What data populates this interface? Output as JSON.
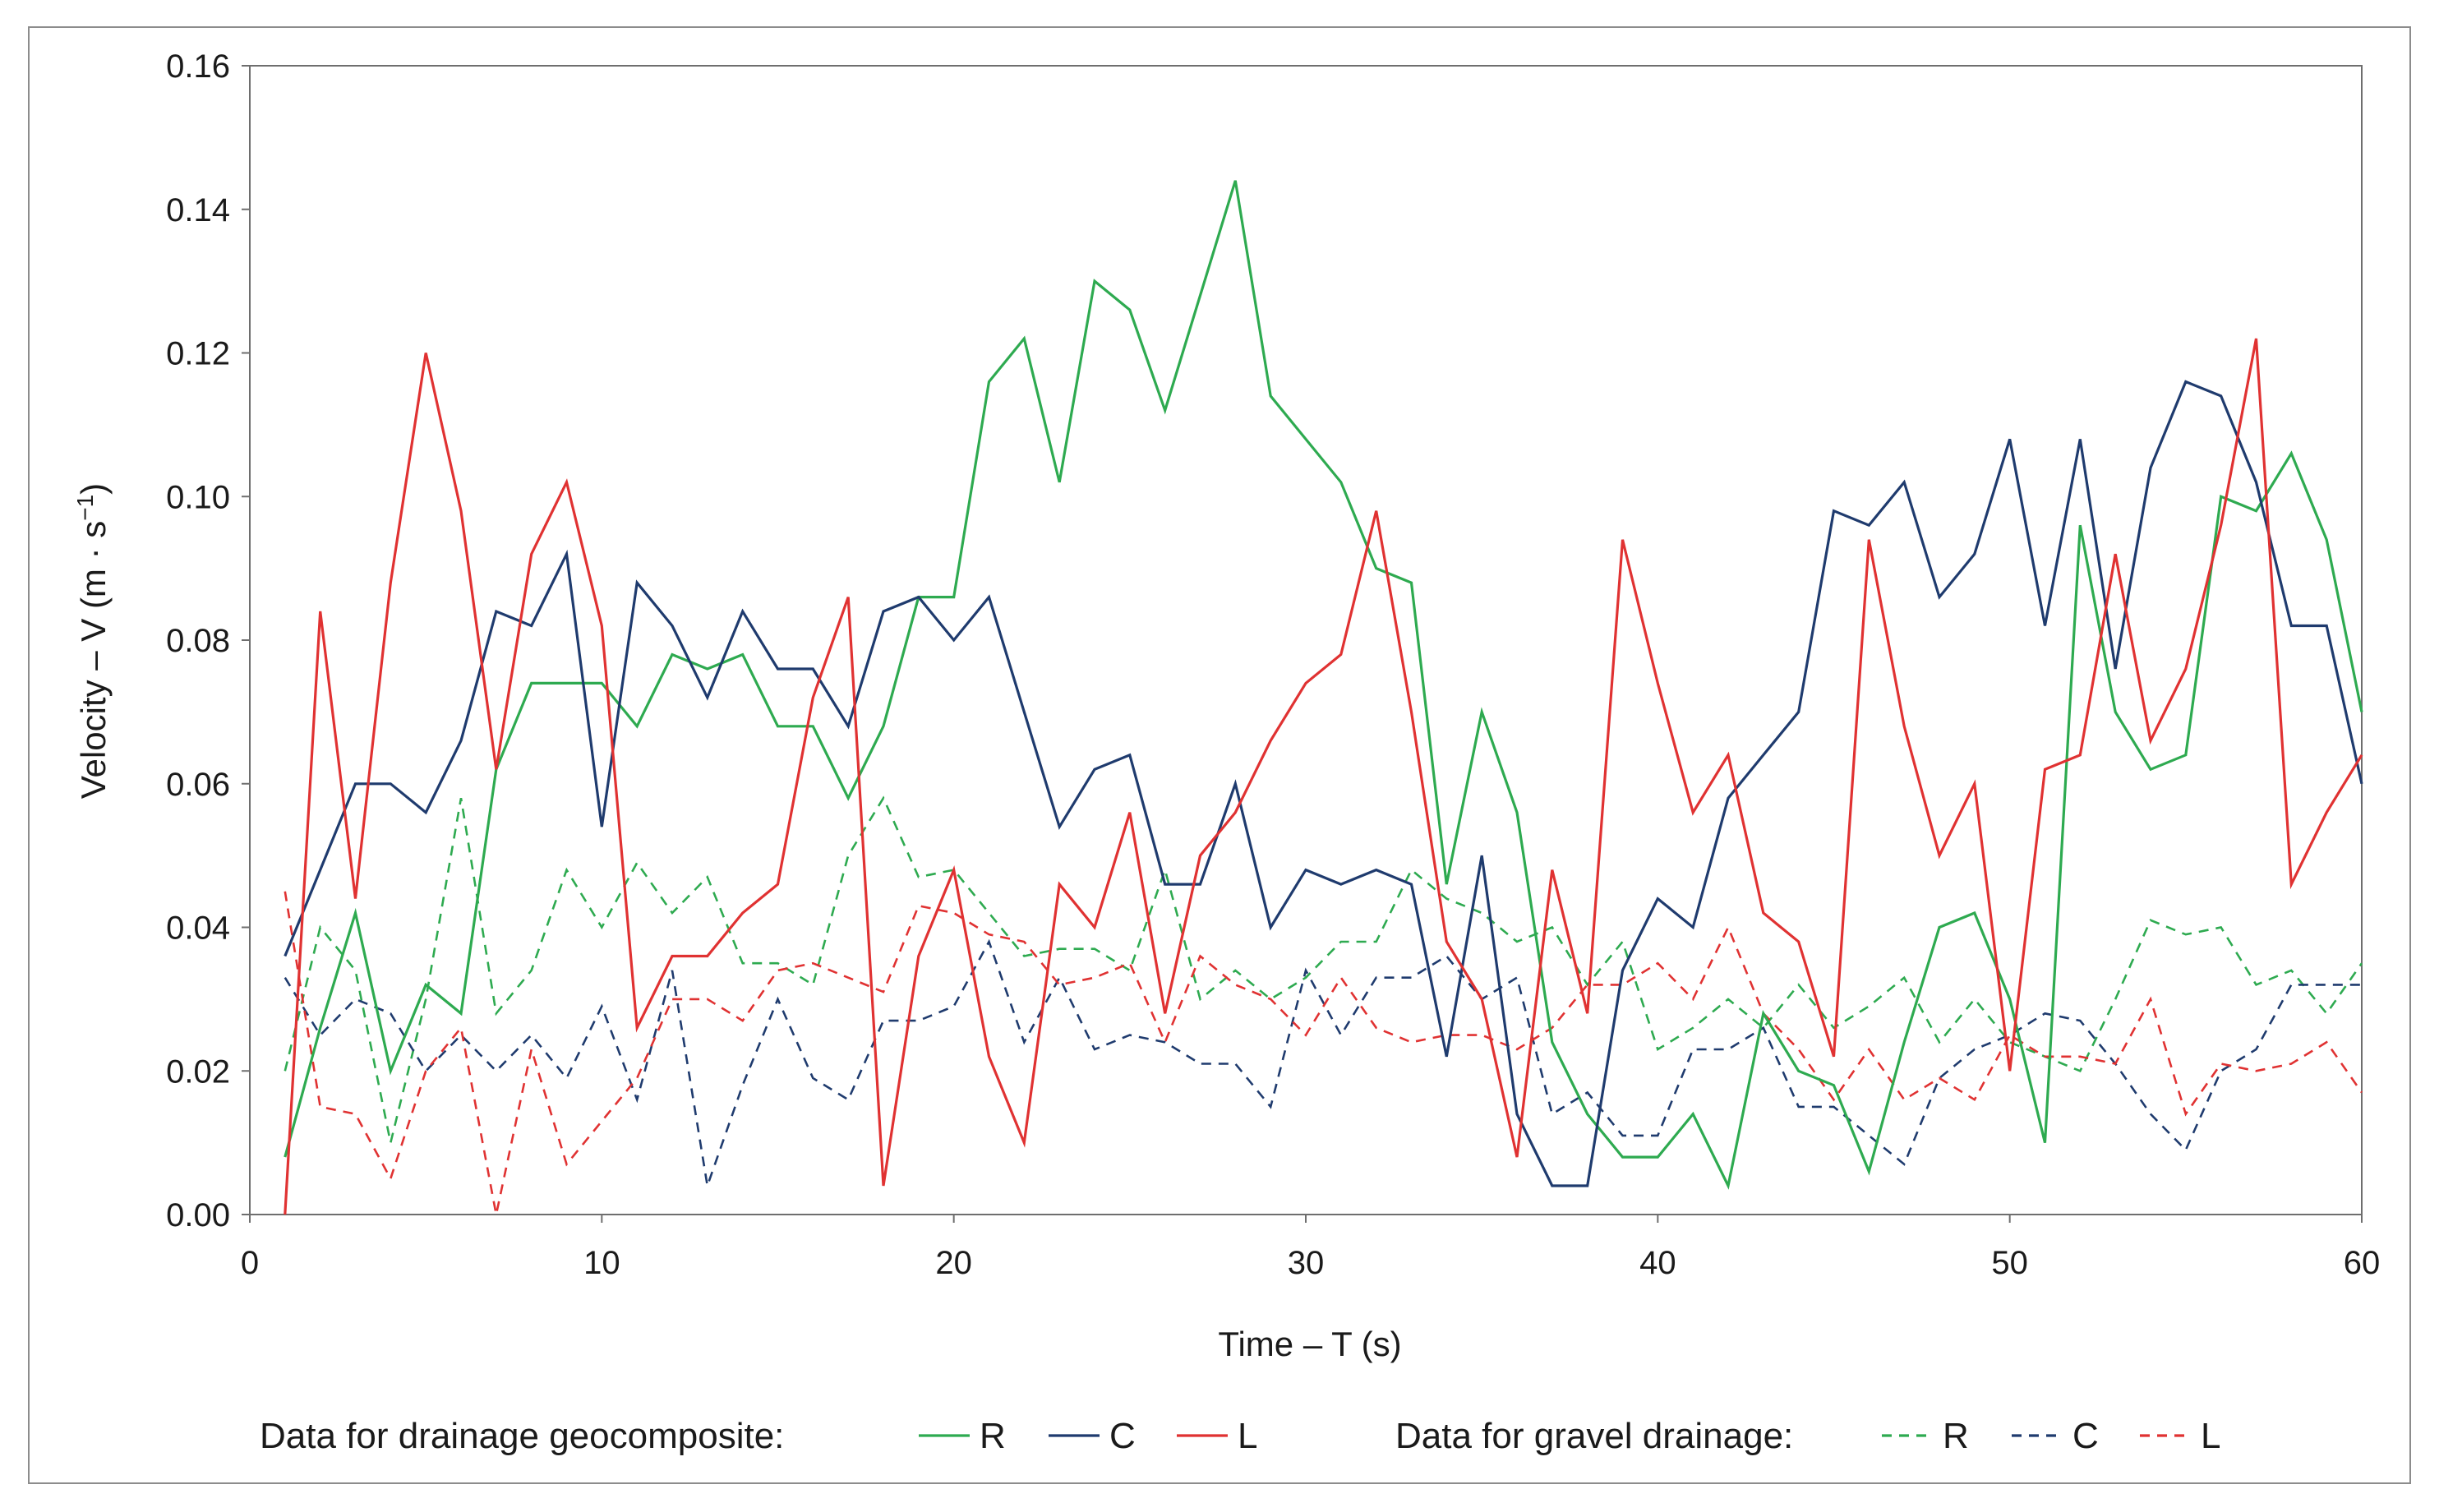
{
  "chart_data": {
    "type": "line",
    "title": "",
    "xlabel": "Time – T (s)",
    "ylabel": "Velocity – V (m · s",
    "ylabel_sup": "−1",
    "ylabel_close": ")",
    "xlim": [
      0,
      60
    ],
    "ylim": [
      0,
      0.16
    ],
    "xticks": [
      0,
      10,
      20,
      30,
      40,
      50,
      60
    ],
    "xtick_labels": [
      "0",
      "10",
      "20",
      "30",
      "40",
      "50",
      "60"
    ],
    "yticks": [
      0,
      0.02,
      0.04,
      0.06,
      0.08,
      0.1,
      0.12,
      0.14,
      0.16
    ],
    "ytick_labels": [
      "0.00",
      "0.02",
      "0.04",
      "0.06",
      "0.08",
      "0.10",
      "0.12",
      "0.14",
      "0.16"
    ],
    "grid": false,
    "legend": {
      "placement": "bottom",
      "group1_title": "Data for drainage geocomposite:",
      "group2_title": "Data for gravel drainage:"
    },
    "x": [
      1,
      2,
      3,
      4,
      5,
      6,
      7,
      8,
      9,
      10,
      11,
      12,
      13,
      14,
      15,
      16,
      17,
      18,
      19,
      20,
      21,
      22,
      23,
      24,
      25,
      26,
      27,
      28,
      29,
      30,
      31,
      32,
      33,
      34,
      35,
      36,
      37,
      38,
      39,
      40,
      41,
      42,
      43,
      44,
      45,
      46,
      47,
      48,
      49,
      50,
      51,
      52,
      53,
      54,
      55,
      56,
      57,
      58,
      59,
      60
    ],
    "series": [
      {
        "name": "R",
        "group": "geocomposite",
        "color": "#2eaa50",
        "dashed": false,
        "values": [
          0.008,
          0.026,
          0.042,
          0.02,
          0.032,
          0.028,
          0.062,
          0.074,
          0.074,
          0.074,
          0.068,
          0.078,
          0.076,
          0.078,
          0.068,
          0.068,
          0.058,
          0.068,
          0.086,
          0.086,
          0.116,
          0.122,
          0.102,
          0.13,
          0.126,
          0.112,
          0.128,
          0.144,
          0.114,
          0.108,
          0.102,
          0.09,
          0.088,
          0.046,
          0.07,
          0.056,
          0.024,
          0.014,
          0.008,
          0.008,
          0.014,
          0.004,
          0.028,
          0.02,
          0.018,
          0.006,
          0.024,
          0.04,
          0.042,
          0.03,
          0.01,
          0.096,
          0.07,
          0.062,
          0.064,
          0.1,
          0.098,
          0.106,
          0.094,
          0.07
        ]
      },
      {
        "name": "C",
        "group": "geocomposite",
        "color": "#1f3b6e",
        "dashed": false,
        "values": [
          0.036,
          0.048,
          0.06,
          0.06,
          0.056,
          0.066,
          0.084,
          0.082,
          0.092,
          0.054,
          0.088,
          0.082,
          0.072,
          0.084,
          0.076,
          0.076,
          0.068,
          0.084,
          0.086,
          0.08,
          0.086,
          0.07,
          0.054,
          0.062,
          0.064,
          0.046,
          0.046,
          0.06,
          0.04,
          0.048,
          0.046,
          0.048,
          0.046,
          0.022,
          0.05,
          0.014,
          0.004,
          0.004,
          0.034,
          0.044,
          0.04,
          0.058,
          0.064,
          0.07,
          0.098,
          0.096,
          0.102,
          0.086,
          0.092,
          0.108,
          0.082,
          0.108,
          0.076,
          0.104,
          0.116,
          0.114,
          0.102,
          0.082,
          0.082,
          0.06
        ]
      },
      {
        "name": "L",
        "group": "geocomposite",
        "color": "#e03232",
        "dashed": false,
        "values": [
          0.0,
          0.084,
          0.044,
          0.088,
          0.12,
          0.098,
          0.062,
          0.092,
          0.102,
          0.082,
          0.026,
          0.036,
          0.036,
          0.042,
          0.046,
          0.072,
          0.086,
          0.004,
          0.036,
          0.048,
          0.022,
          0.01,
          0.046,
          0.04,
          0.056,
          0.028,
          0.05,
          0.056,
          0.066,
          0.074,
          0.078,
          0.098,
          0.07,
          0.038,
          0.03,
          0.008,
          0.048,
          0.028,
          0.094,
          0.074,
          0.056,
          0.064,
          0.042,
          0.038,
          0.022,
          0.094,
          0.068,
          0.05,
          0.06,
          0.02,
          0.062,
          0.064,
          0.092,
          0.066,
          0.076,
          0.096,
          0.122,
          0.046,
          0.056,
          0.064
        ]
      },
      {
        "name": "R",
        "group": "gravel",
        "color": "#2eaa50",
        "dashed": true,
        "values": [
          0.02,
          0.04,
          0.034,
          0.01,
          0.03,
          0.058,
          0.028,
          0.034,
          0.048,
          0.04,
          0.049,
          0.042,
          0.047,
          0.035,
          0.035,
          0.032,
          0.05,
          0.058,
          0.047,
          0.048,
          0.042,
          0.036,
          0.037,
          0.037,
          0.034,
          0.048,
          0.03,
          0.034,
          0.03,
          0.033,
          0.038,
          0.038,
          0.048,
          0.044,
          0.042,
          0.038,
          0.04,
          0.032,
          0.038,
          0.023,
          0.026,
          0.03,
          0.026,
          0.032,
          0.026,
          0.029,
          0.033,
          0.024,
          0.03,
          0.024,
          0.022,
          0.02,
          0.03,
          0.041,
          0.039,
          0.04,
          0.032,
          0.034,
          0.028,
          0.035
        ]
      },
      {
        "name": "C",
        "group": "gravel",
        "color": "#1f3b6e",
        "dashed": true,
        "values": [
          0.033,
          0.025,
          0.03,
          0.028,
          0.02,
          0.025,
          0.02,
          0.025,
          0.019,
          0.029,
          0.016,
          0.034,
          0.004,
          0.018,
          0.03,
          0.019,
          0.016,
          0.027,
          0.027,
          0.029,
          0.038,
          0.024,
          0.033,
          0.023,
          0.025,
          0.024,
          0.021,
          0.021,
          0.015,
          0.034,
          0.025,
          0.033,
          0.033,
          0.036,
          0.03,
          0.033,
          0.014,
          0.017,
          0.011,
          0.011,
          0.023,
          0.023,
          0.026,
          0.015,
          0.015,
          0.011,
          0.007,
          0.019,
          0.023,
          0.025,
          0.028,
          0.027,
          0.021,
          0.014,
          0.009,
          0.02,
          0.023,
          0.032,
          0.032,
          0.032
        ]
      },
      {
        "name": "L",
        "group": "gravel",
        "color": "#e03232",
        "dashed": true,
        "values": [
          0.045,
          0.015,
          0.014,
          0.005,
          0.02,
          0.026,
          0.0,
          0.023,
          0.007,
          0.013,
          0.019,
          0.03,
          0.03,
          0.027,
          0.034,
          0.035,
          0.033,
          0.031,
          0.043,
          0.042,
          0.039,
          0.038,
          0.032,
          0.033,
          0.035,
          0.024,
          0.036,
          0.032,
          0.03,
          0.025,
          0.033,
          0.026,
          0.024,
          0.025,
          0.025,
          0.023,
          0.026,
          0.032,
          0.032,
          0.035,
          0.03,
          0.04,
          0.028,
          0.023,
          0.016,
          0.023,
          0.016,
          0.019,
          0.016,
          0.025,
          0.022,
          0.022,
          0.021,
          0.03,
          0.014,
          0.021,
          0.02,
          0.021,
          0.024,
          0.017
        ]
      }
    ]
  }
}
